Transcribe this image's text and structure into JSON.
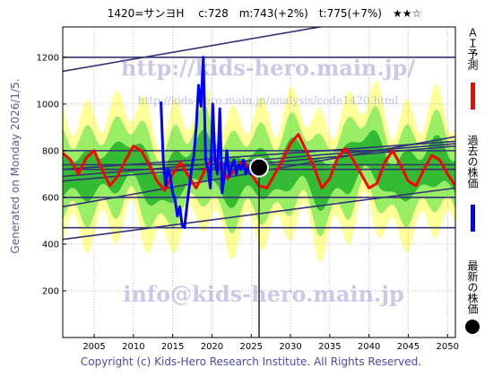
{
  "header": {
    "title": "1420=サンヨH　 c:728　m:743(+2%)　t:775(+7%)　★★☆"
  },
  "side_text": "Generated on Monday 2026/1/5.",
  "footer": "Copyright (c) Kids-Hero Research Institute. All Rights Reserved.",
  "watermarks": {
    "url_large": "http://kids-hero.main.jp/",
    "url_small": "http://kids-hero.main.jp/analysis/code1420.html",
    "email": "info@kids-hero.main.jp"
  },
  "legend": [
    {
      "label": "ＡＩ予測",
      "color": "#ff0000"
    },
    {
      "label": "過去の株価",
      "color": "#0000ff"
    },
    {
      "label": "最新の株価",
      "color": "#000000"
    }
  ],
  "colors": {
    "band_outer": "#ffff99",
    "band_mid": "#99ee66",
    "band_inner": "#33bb33",
    "trend": "#333377",
    "prediction": "#ff0000",
    "history": "#0000ff",
    "latest": "#000000"
  },
  "chart_data": {
    "type": "line",
    "xlim": [
      2001,
      2051
    ],
    "ylim": [
      0,
      1330
    ],
    "x_ticks": [
      2005,
      2010,
      2015,
      2020,
      2025,
      2030,
      2035,
      2040,
      2045,
      2050
    ],
    "y_ticks": [
      200,
      400,
      600,
      800,
      1000,
      1200
    ],
    "grid": true,
    "horizontal_levels": [
      470,
      600,
      720,
      740,
      800,
      1200
    ],
    "trend_lines": [
      {
        "x": [
          2001,
          2051
        ],
        "y": [
          1140,
          1430
        ]
      },
      {
        "x": [
          2001,
          2051
        ],
        "y": [
          720,
          840
        ]
      },
      {
        "x": [
          2001,
          2051
        ],
        "y": [
          690,
          830
        ]
      },
      {
        "x": [
          2001,
          2051
        ],
        "y": [
          670,
          820
        ]
      },
      {
        "x": [
          2001,
          2051
        ],
        "y": [
          560,
          860
        ]
      },
      {
        "x": [
          2001,
          2051
        ],
        "y": [
          420,
          640
        ]
      }
    ],
    "band_center": {
      "x": [
        2001,
        2004,
        2007,
        2010,
        2013,
        2016,
        2019,
        2022,
        2025,
        2028,
        2031,
        2034,
        2037,
        2040,
        2043,
        2046,
        2049,
        2051
      ],
      "y": [
        700,
        690,
        720,
        760,
        640,
        700,
        780,
        660,
        710,
        690,
        760,
        650,
        720,
        800,
        680,
        700,
        760,
        690
      ]
    },
    "band_widths": {
      "outer": 330,
      "mid": 220,
      "inner": 110
    },
    "series": [
      {
        "name": "ＡＩ予測",
        "x": [
          2001,
          2002,
          2003,
          2004,
          2005,
          2006,
          2007,
          2008,
          2009,
          2010,
          2011,
          2012,
          2013,
          2014,
          2015,
          2016,
          2017,
          2018,
          2019,
          2020,
          2021,
          2022,
          2023,
          2024,
          2025,
          2026,
          2027,
          2028,
          2029,
          2030,
          2031,
          2032,
          2033,
          2034,
          2035,
          2036,
          2037,
          2038,
          2039,
          2040,
          2041,
          2042,
          2043,
          2044,
          2045,
          2046,
          2047,
          2048,
          2049,
          2050,
          2051
        ],
        "y": [
          790,
          760,
          700,
          770,
          800,
          720,
          650,
          690,
          760,
          820,
          800,
          740,
          670,
          630,
          700,
          750,
          690,
          640,
          710,
          770,
          740,
          680,
          720,
          760,
          700,
          650,
          640,
          700,
          760,
          830,
          870,
          800,
          730,
          640,
          680,
          770,
          810,
          760,
          700,
          640,
          660,
          750,
          800,
          740,
          670,
          650,
          720,
          780,
          760,
          700,
          650
        ]
      },
      {
        "name": "過去の株価",
        "x": [
          2013.5,
          2013.8,
          2014.1,
          2014.4,
          2014.7,
          2015.0,
          2015.3,
          2015.6,
          2015.9,
          2016.2,
          2016.5,
          2016.8,
          2017.1,
          2017.4,
          2017.7,
          2018.0,
          2018.3,
          2018.6,
          2018.9,
          2019.2,
          2019.5,
          2019.8,
          2020.1,
          2020.4,
          2020.7,
          2021.0,
          2021.3,
          2021.6,
          2021.9,
          2022.2,
          2022.5,
          2022.8,
          2023.1,
          2023.4,
          2023.7,
          2024.0,
          2024.3,
          2024.6,
          2024.9,
          2025.2,
          2025.5,
          2025.8
        ],
        "y": [
          1010,
          760,
          650,
          720,
          690,
          620,
          590,
          520,
          560,
          480,
          470,
          560,
          640,
          720,
          780,
          900,
          1080,
          990,
          1200,
          760,
          720,
          640,
          1000,
          760,
          700,
          980,
          620,
          700,
          800,
          690,
          730,
          760,
          700,
          740,
          720,
          760,
          700,
          730,
          700,
          740,
          720,
          728
        ]
      }
    ],
    "latest_point": {
      "x": 2026.0,
      "y": 728
    },
    "latest_vline_x": 2026.0
  }
}
